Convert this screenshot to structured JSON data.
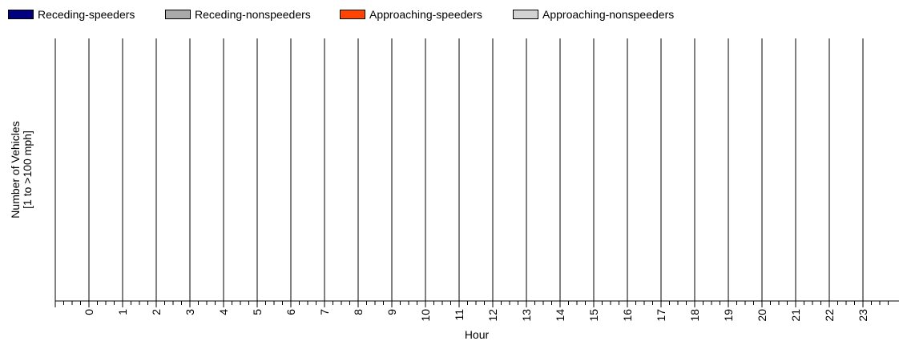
{
  "chart_data": {
    "type": "bar",
    "title": "",
    "xlabel": "Hour",
    "ylabel_lines": [
      "Number of Vehicles",
      "[1 to >100 mph]"
    ],
    "categories": [
      "0",
      "1",
      "2",
      "3",
      "4",
      "5",
      "6",
      "7",
      "8",
      "9",
      "10",
      "11",
      "12",
      "13",
      "14",
      "15",
      "16",
      "17",
      "18",
      "19",
      "20",
      "21",
      "22",
      "23"
    ],
    "series": [
      {
        "name": "Receding-speeders",
        "color": "#000080",
        "values": [
          0,
          0,
          0,
          0,
          0,
          0,
          0,
          0,
          0,
          0,
          0,
          0,
          0,
          0,
          0,
          0,
          0,
          0,
          0,
          0,
          0,
          0,
          0,
          0
        ]
      },
      {
        "name": "Receding-nonspeeders",
        "color": "#a9a9a9",
        "values": [
          0,
          0,
          0,
          0,
          0,
          0,
          0,
          0,
          0,
          0,
          0,
          0,
          0,
          0,
          0,
          0,
          0,
          0,
          0,
          0,
          0,
          0,
          0,
          0
        ]
      },
      {
        "name": "Approaching-speeders",
        "color": "#ff4500",
        "values": [
          0,
          0,
          0,
          0,
          0,
          0,
          0,
          0,
          0,
          0,
          0,
          0,
          0,
          0,
          0,
          0,
          0,
          0,
          0,
          0,
          0,
          0,
          0,
          0
        ]
      },
      {
        "name": "Approaching-nonspeeders",
        "color": "#d3d3d3",
        "values": [
          0,
          0,
          0,
          0,
          0,
          0,
          0,
          0,
          0,
          0,
          0,
          0,
          0,
          0,
          0,
          0,
          0,
          0,
          0,
          0,
          0,
          0,
          0,
          0
        ]
      }
    ],
    "grid": "vertical",
    "legend_position": "top-left"
  }
}
